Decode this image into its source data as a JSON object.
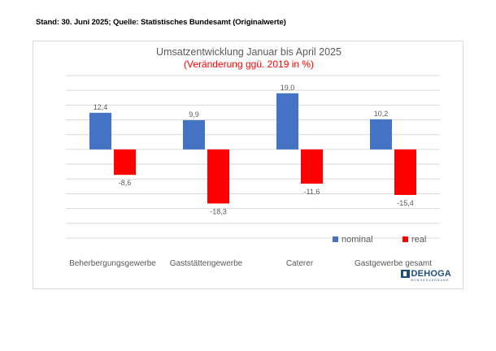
{
  "header": {
    "stand": "Stand: 30. Juni 2025; Quelle: Statistisches Bundesamt (Originalwerte)"
  },
  "logo": {
    "text": "DEHOGA",
    "sub": "BUNDESVERBAND"
  },
  "colors": {
    "nominal": "#4472c4",
    "real": "#ff0000",
    "grid": "#d9d9d9",
    "text": "#595959"
  },
  "chart_data": {
    "type": "bar",
    "title": "Umsatzentwicklung Januar bis April 2025",
    "subtitle": "(Veränderung ggü. 2019 in %)",
    "categories": [
      "Beherbergungsgewerbe",
      "Gaststättengewerbe",
      "Caterer",
      "Gastgewerbe gesamt"
    ],
    "series": [
      {
        "name": "nominal",
        "values": [
          12.4,
          9.9,
          19.0,
          10.2
        ],
        "labels": [
          "12,4",
          "9,9",
          "19,0",
          "10,2"
        ]
      },
      {
        "name": "real",
        "values": [
          -8.6,
          -18.3,
          -11.6,
          -15.4
        ],
        "labels": [
          "-8,6",
          "-18,3",
          "-11,6",
          "-15,4"
        ]
      }
    ],
    "ylim": [
      -30,
      25
    ],
    "grid": true,
    "legend": "bottom-right"
  }
}
